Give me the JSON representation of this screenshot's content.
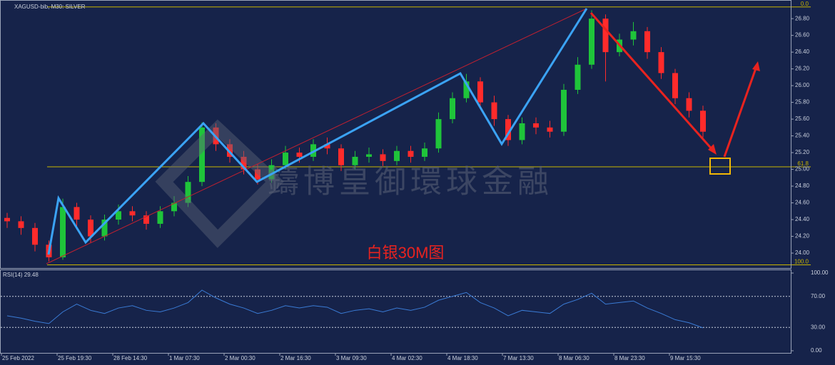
{
  "chart_data": {
    "type": "candlestick",
    "title": "XAGUSD-bib, M30:  SILVER",
    "annotation": "白银30M图",
    "watermark": "鑄博皇御環球金融",
    "up_color": "#1fc43a",
    "down_color": "#ff2b2b",
    "categories": [
      "25 Feb 2022",
      null,
      null,
      null,
      "25 Feb 19:30",
      null,
      null,
      null,
      "28 Feb 14:30",
      null,
      null,
      null,
      "1 Mar 07:30",
      null,
      null,
      null,
      "2 Mar 00:30",
      null,
      null,
      null,
      "2 Mar 16:30",
      null,
      null,
      null,
      "3 Mar 09:30",
      null,
      null,
      null,
      "4 Mar 02:30",
      null,
      null,
      null,
      "4 Mar 18:30",
      null,
      null,
      null,
      "7 Mar 13:30",
      null,
      null,
      null,
      "8 Mar 06:30",
      null,
      null,
      null,
      "8 Mar 23:30",
      null,
      null,
      null,
      "9 Mar 15:30",
      null,
      null
    ],
    "open": [
      24.42,
      24.38,
      24.3,
      24.1,
      23.95,
      24.55,
      24.4,
      24.2,
      24.4,
      24.5,
      24.45,
      24.35,
      24.5,
      24.6,
      24.85,
      25.5,
      25.3,
      25.15,
      25.0,
      24.88,
      25.05,
      25.2,
      25.15,
      25.3,
      25.25,
      25.05,
      25.15,
      25.18,
      25.1,
      25.22,
      25.15,
      25.25,
      25.6,
      25.85,
      26.05,
      25.8,
      25.6,
      25.35,
      25.55,
      25.5,
      25.45,
      25.95,
      26.25,
      26.8,
      26.4,
      26.55,
      26.65,
      26.4,
      26.15,
      25.85,
      25.7
    ],
    "high": [
      24.48,
      24.44,
      24.36,
      24.15,
      24.65,
      24.6,
      24.45,
      24.46,
      24.58,
      24.56,
      24.5,
      24.56,
      24.68,
      24.92,
      25.56,
      25.55,
      25.36,
      25.22,
      25.06,
      25.12,
      25.28,
      25.26,
      25.36,
      25.38,
      25.3,
      25.22,
      25.26,
      25.24,
      25.28,
      25.28,
      25.32,
      25.68,
      25.92,
      26.14,
      26.1,
      25.88,
      25.65,
      25.62,
      25.62,
      25.58,
      26.02,
      26.34,
      26.9,
      26.85,
      26.62,
      26.76,
      26.7,
      26.46,
      26.2,
      25.92,
      25.76
    ],
    "low": [
      24.3,
      24.22,
      24.02,
      23.9,
      23.92,
      24.32,
      24.12,
      24.15,
      24.34,
      24.38,
      24.28,
      24.3,
      24.44,
      24.55,
      24.8,
      25.22,
      25.08,
      24.94,
      24.82,
      24.84,
      25.0,
      25.08,
      25.1,
      25.18,
      24.98,
      25.0,
      25.08,
      25.04,
      25.05,
      25.08,
      25.1,
      25.2,
      25.55,
      25.8,
      25.72,
      25.52,
      25.28,
      25.3,
      25.42,
      25.38,
      25.4,
      25.9,
      26.2,
      26.05,
      26.35,
      26.48,
      26.32,
      26.08,
      25.78,
      25.62,
      25.38
    ],
    "close": [
      24.38,
      24.3,
      24.1,
      23.95,
      24.55,
      24.4,
      24.2,
      24.4,
      24.5,
      24.45,
      24.35,
      24.5,
      24.6,
      24.85,
      25.5,
      25.3,
      25.15,
      25.0,
      24.88,
      25.05,
      25.2,
      25.15,
      25.3,
      25.25,
      25.05,
      25.15,
      25.18,
      25.1,
      25.22,
      25.15,
      25.25,
      25.6,
      25.85,
      26.05,
      25.8,
      25.6,
      25.35,
      25.55,
      25.5,
      25.45,
      25.95,
      26.25,
      26.8,
      26.4,
      26.55,
      26.65,
      26.4,
      26.15,
      25.85,
      25.7,
      25.45
    ],
    "ylim": [
      23.83,
      26.98
    ],
    "yticks": [
      {
        "value": 26.8,
        "label": "26.80"
      },
      {
        "value": 26.6,
        "label": "26.60"
      },
      {
        "value": 26.4,
        "label": "26.40"
      },
      {
        "value": 26.2,
        "label": "26.20"
      },
      {
        "value": 26.0,
        "label": "26.00"
      },
      {
        "value": 25.8,
        "label": "25.80"
      },
      {
        "value": 25.6,
        "label": "25.60"
      },
      {
        "value": 25.4,
        "label": "25.40"
      },
      {
        "value": 25.2,
        "label": "25.20"
      },
      {
        "value": 25.0,
        "label": "25.00"
      },
      {
        "value": 24.8,
        "label": "24.80"
      },
      {
        "value": 24.6,
        "label": "24.60"
      },
      {
        "value": 24.4,
        "label": "24.40"
      },
      {
        "value": 24.2,
        "label": "24.20"
      },
      {
        "value": 24.0,
        "label": "24.00"
      }
    ],
    "levels": [
      {
        "label": "0.0",
        "value": 26.94
      },
      {
        "label": "61.8",
        "value": 25.03
      },
      {
        "label": "100.0",
        "value": 23.86
      }
    ],
    "level_color": "#c8b400",
    "rsi": {
      "label": "RSI(14) 29.48",
      "color": "#3a7bd5",
      "values": [
        45,
        42,
        38,
        35,
        50,
        60,
        52,
        48,
        55,
        58,
        52,
        50,
        55,
        62,
        78,
        68,
        60,
        55,
        48,
        52,
        58,
        55,
        58,
        56,
        48,
        52,
        54,
        50,
        55,
        52,
        56,
        65,
        70,
        75,
        62,
        55,
        45,
        52,
        50,
        48,
        60,
        66,
        74,
        60,
        62,
        64,
        55,
        48,
        40,
        36,
        29.48
      ],
      "ylim": [
        0,
        100
      ],
      "yticks": [
        {
          "value": 100,
          "label": "100.00"
        },
        {
          "value": 70,
          "label": "70.00"
        },
        {
          "value": 30,
          "label": "30.00"
        },
        {
          "value": 0,
          "label": "0.00"
        }
      ]
    }
  }
}
